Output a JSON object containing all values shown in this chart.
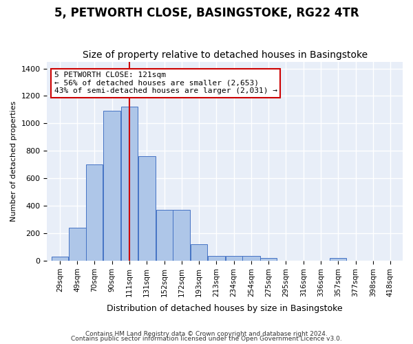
{
  "title": "5, PETWORTH CLOSE, BASINGSTOKE, RG22 4TR",
  "subtitle": "Size of property relative to detached houses in Basingstoke",
  "xlabel": "Distribution of detached houses by size in Basingstoke",
  "ylabel": "Number of detached properties",
  "footnote1": "Contains HM Land Registry data © Crown copyright and database right 2024.",
  "footnote2": "Contains public sector information licensed under the Open Government Licence v3.0.",
  "property_label": "5 PETWORTH CLOSE: 121sqm",
  "annotation_line1": "← 56% of detached houses are smaller (2,653)",
  "annotation_line2": "43% of semi-detached houses are larger (2,031) →",
  "property_size": 121,
  "bar_left_edges": [
    29,
    49,
    70,
    90,
    111,
    131,
    152,
    172,
    193,
    213,
    234,
    254,
    275,
    295,
    316,
    336,
    357,
    377,
    398,
    418
  ],
  "bar_heights": [
    30,
    240,
    700,
    1090,
    1120,
    760,
    370,
    370,
    120,
    35,
    35,
    35,
    20,
    0,
    0,
    0,
    18,
    0,
    0,
    0
  ],
  "bar_color": "#aec6e8",
  "bar_edge_color": "#4472c4",
  "vline_color": "#cc0000",
  "vline_x": 121,
  "ylim": [
    0,
    1450
  ],
  "yticks": [
    0,
    200,
    400,
    600,
    800,
    1000,
    1200,
    1400
  ],
  "bg_color": "#e8eef8",
  "grid_color": "#ffffff",
  "annotation_box_color": "#ffffff",
  "annotation_box_edge": "#cc0000",
  "title_fontsize": 12,
  "subtitle_fontsize": 10,
  "tick_label_fontsize": 7.5
}
